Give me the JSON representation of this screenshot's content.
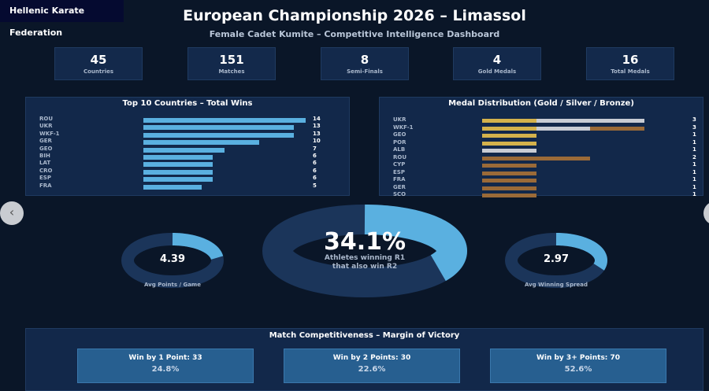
{
  "brand": "Hellenic Karate Federation",
  "title": "European Championship 2026 – Limassol",
  "subtitle": "Female Cadet Kumite – Competitive Intelligence Dashboard",
  "kpis": [
    {
      "value": "45",
      "label": "Countries"
    },
    {
      "value": "151",
      "label": "Matches"
    },
    {
      "value": "8",
      "label": "Semi-Finals"
    },
    {
      "value": "4",
      "label": "Gold Medals"
    },
    {
      "value": "16",
      "label": "Total Medals"
    }
  ],
  "colors": {
    "accent": "#5ab0e0",
    "gold": "#d4b24c",
    "silver": "#c8ccd4",
    "bronze": "#9a6a38",
    "ring": "#1b355a"
  },
  "nav": {
    "prev_icon": "‹",
    "next_icon": "›"
  },
  "chart_data": [
    {
      "type": "bar",
      "title": "Top 10 Countries – Total Wins",
      "orientation": "horizontal",
      "categories": [
        "ROU",
        "UKR",
        "WKF-1",
        "GER",
        "GEO",
        "BIH",
        "LAT",
        "CRO",
        "ESP",
        "FRA"
      ],
      "values": [
        14,
        13,
        13,
        10,
        7,
        6,
        6,
        6,
        6,
        5
      ],
      "xlim": [
        0,
        14
      ]
    },
    {
      "type": "bar",
      "title": "Medal Distribution (Gold / Silver / Bronze)",
      "orientation": "horizontal",
      "stacked": true,
      "categories": [
        "UKR",
        "WKF-1",
        "GEO",
        "POR",
        "ALB",
        "ROU",
        "CYP",
        "ESP",
        "FRA",
        "GER",
        "SCO"
      ],
      "totals": [
        3,
        3,
        1,
        1,
        1,
        2,
        1,
        1,
        1,
        1,
        1
      ],
      "series": [
        {
          "name": "Gold",
          "values": [
            1,
            1,
            1,
            1,
            0,
            0,
            0,
            0,
            0,
            0,
            0
          ]
        },
        {
          "name": "Silver",
          "values": [
            2,
            1,
            0,
            0,
            1,
            0,
            0,
            0,
            0,
            0,
            0
          ]
        },
        {
          "name": "Bronze",
          "values": [
            0,
            1,
            0,
            0,
            0,
            2,
            1,
            1,
            1,
            1,
            1
          ]
        }
      ],
      "xlim": [
        0,
        3
      ]
    },
    {
      "type": "pie",
      "variant": "donut",
      "value_label": "4.39",
      "caption": "Avg Points / Game",
      "fraction": 0.23
    },
    {
      "type": "pie",
      "variant": "donut",
      "value_label": "34.1%",
      "caption_lines": [
        "Athletes winning R1",
        "that also win R2"
      ],
      "fraction": 0.341
    },
    {
      "type": "pie",
      "variant": "donut",
      "value_label": "2.97",
      "caption": "Avg Winning Spread",
      "fraction": 0.3
    },
    {
      "type": "bar",
      "title": "Match Competitiveness – Margin of Victory",
      "categories": [
        "Win by 1 Point: 33",
        "Win by 2 Points: 30",
        "Win by 3+ Points: 70"
      ],
      "values": [
        33,
        30,
        70
      ],
      "percent_labels": [
        "24.8%",
        "22.6%",
        "52.6%"
      ]
    }
  ]
}
